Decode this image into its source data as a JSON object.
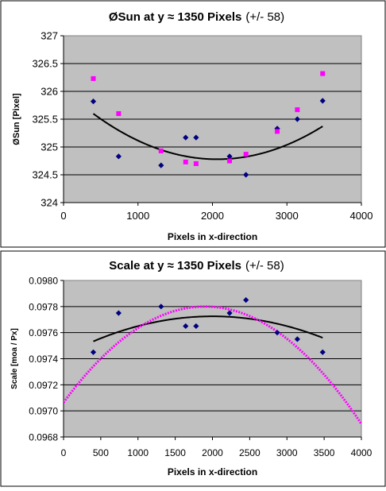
{
  "chart_data": [
    {
      "type": "scatter",
      "title_main": "ØSun at y ≈ 1350 Pixels",
      "title_suffix": "(+/- 58)",
      "xlabel": "Pixels in x-direction",
      "ylabel": "ØSun [Pixel]",
      "xlim": [
        0,
        4000
      ],
      "ylim": [
        324,
        327
      ],
      "xticks": [
        "0",
        "1000",
        "2000",
        "3000",
        "4000"
      ],
      "yticks": [
        "327",
        "326.5",
        "326",
        "325.5",
        "325",
        "324.5",
        "324"
      ],
      "plot_bg": "#c0c0c0",
      "grid": "horizontal",
      "series": [
        {
          "marker": "diamond",
          "color": "#000080",
          "points": [
            [
              400,
              325.82
            ],
            [
              740,
              324.83
            ],
            [
              1310,
              324.67
            ],
            [
              1640,
              325.17
            ],
            [
              1780,
              325.17
            ],
            [
              2230,
              324.83
            ],
            [
              2450,
              324.5
            ],
            [
              2870,
              325.33
            ],
            [
              3140,
              325.5
            ],
            [
              3480,
              325.83
            ]
          ]
        },
        {
          "marker": "square",
          "color": "#ff00ff",
          "points": [
            [
              400,
              326.23
            ],
            [
              740,
              325.6
            ],
            [
              1310,
              324.93
            ],
            [
              1640,
              324.73
            ],
            [
              1780,
              324.7
            ],
            [
              2230,
              324.75
            ],
            [
              2450,
              324.87
            ],
            [
              2870,
              325.28
            ],
            [
              3140,
              325.67
            ],
            [
              3480,
              326.32
            ]
          ]
        }
      ],
      "trendlines": [
        {
          "color": "#000000",
          "width": 2,
          "from": 400,
          "to": 3480,
          "coef": [
            2.956e-07,
            -0.0012207,
            326.04
          ]
        }
      ]
    },
    {
      "type": "scatter",
      "title_main": "Scale at y ≈ 1350 Pixels",
      "title_suffix": "(+/- 58)",
      "xlabel": "Pixels in x-direction",
      "ylabel": "Scale [moa / Px]",
      "xlim": [
        0,
        4000
      ],
      "ylim": [
        0.0968,
        0.098
      ],
      "xticks": [
        "0",
        "500",
        "1000",
        "1500",
        "2000",
        "2500",
        "3000",
        "3500",
        "4000"
      ],
      "yticks": [
        "0.0980",
        "0.0978",
        "0.0976",
        "0.0974",
        "0.0972",
        "0.0970",
        "0.0968"
      ],
      "plot_bg": "#c0c0c0",
      "grid": "horizontal",
      "series": [
        {
          "marker": "diamond",
          "color": "#000080",
          "points": [
            [
              400,
              0.09745
            ],
            [
              740,
              0.09775
            ],
            [
              1310,
              0.0978
            ],
            [
              1640,
              0.09765
            ],
            [
              1780,
              0.09765
            ],
            [
              2230,
              0.09775
            ],
            [
              2450,
              0.09785
            ],
            [
              2870,
              0.0976
            ],
            [
              3140,
              0.09755
            ],
            [
              3480,
              0.09745
            ]
          ]
        }
      ],
      "trendlines": [
        {
          "color": "#000000",
          "width": 2,
          "from": 400,
          "to": 3480,
          "coef": [
            -7.5e-11,
            3e-07,
            0.097425
          ]
        },
        {
          "color": "#ff00ff",
          "width": 3,
          "dotted": true,
          "from": 0,
          "to": 4000,
          "coef": [
            -2.04e-10,
            7.75e-07,
            0.097064
          ]
        }
      ]
    }
  ]
}
